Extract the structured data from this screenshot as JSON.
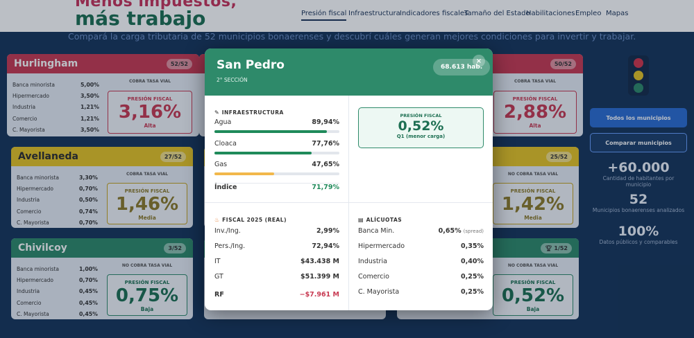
{
  "header": {
    "title_line1": "Menos impuestos,",
    "title_line2": "más trabajo",
    "subtitle": "Compará la carga tributaria de 52 municipios bonaerenses y descubrí cuáles generan mejores condiciones para invertir y trabajar.",
    "nav": [
      "Presión fiscal",
      "Infraestructura",
      "Indicadores fiscales",
      "Tamaño del Estado",
      "Habilitaciones",
      "Empleo",
      "Mapas"
    ],
    "active_nav": "Presión fiscal"
  },
  "row_labels": [
    "Banca minorista",
    "Hipermercado",
    "Industria",
    "Comercio",
    "C. Mayorista"
  ],
  "cards": {
    "hurlingham": {
      "name": "Hurlingham",
      "rank": "52/52",
      "tasa": "COBRA TASA VIAL",
      "rows": [
        "5,00%",
        "3,50%",
        "1,21%",
        "1,21%",
        "3,50%"
      ],
      "ptitle": "PRESIÓN FISCAL",
      "pval": "3,16%",
      "pcat": "Alta"
    },
    "avellaneda": {
      "name": "Avellaneda",
      "rank": "27/52",
      "tasa": "COBRA TASA VIAL",
      "rows": [
        "3,30%",
        "0,70%",
        "0,50%",
        "0,74%",
        "0,70%"
      ],
      "ptitle": "PRESIÓN FISCAL",
      "pval": "1,46%",
      "pcat": "Media"
    },
    "chivilcoy": {
      "name": "Chivilcoy",
      "rank": "3/52",
      "tasa": "NO COBRA TASA VIAL",
      "rows": [
        "1,00%",
        "0,70%",
        "0,45%",
        "0,45%",
        "0,45%"
      ],
      "ptitle": "PRESIÓN FISCAL",
      "pval": "0,75%",
      "pcat": "Baja"
    },
    "right1": {
      "rank": "50/52",
      "tasa": "COBRA TASA VIAL",
      "ptitle": "PRESIÓN FISCAL",
      "pval": "2,88%",
      "pcat": "Alta"
    },
    "right2": {
      "rank": "25/52",
      "tasa": "NO COBRA TASA VIAL",
      "ptitle": "PRESIÓN FISCAL",
      "pval": "1,42%",
      "pcat": "Media"
    },
    "right3": {
      "rank": "1/52",
      "tasa": "NO COBRA TASA VIAL",
      "ptitle": "PRESIÓN FISCAL",
      "pval": "0,52%",
      "pcat": "Baja"
    }
  },
  "sidebar": {
    "btn_all": "Todos los municipios",
    "btn_compare": "Comparar municipios",
    "stats": [
      {
        "num": "+60.000",
        "label": "Cantidad de habitantes por municipio"
      },
      {
        "num": "52",
        "label": "Municipios bonaerenses analizados"
      },
      {
        "num": "100%",
        "label": "Datos públicos y comparables"
      }
    ]
  },
  "modal": {
    "name": "San Pedro",
    "section": "2° SECCIÓN",
    "habitants": "68.613 hab.",
    "close": "×",
    "infra": {
      "title": "INFRAESTRUCTURA",
      "items": [
        {
          "label": "Agua",
          "value": "89,94%",
          "pct": 89.94,
          "color": "#1f8a5a"
        },
        {
          "label": "Cloaca",
          "value": "77,76%",
          "pct": 77.76,
          "color": "#1f8a5a"
        },
        {
          "label": "Gas",
          "value": "47,65%",
          "pct": 47.65,
          "color": "#f2b84b"
        }
      ],
      "index_label": "Índice",
      "index_value": "71,79%"
    },
    "presion": {
      "title": "PRESIÓN FISCAL",
      "value": "0,52%",
      "sub": "Q1 (menor carga)"
    },
    "fiscal": {
      "title": "FISCAL 2025 (REAL)",
      "items": [
        {
          "label": "Inv./Ing.",
          "value": "2,99%"
        },
        {
          "label": "Pers./Ing.",
          "value": "72,94%"
        },
        {
          "label": "IT",
          "value": "$43.438 M"
        },
        {
          "label": "GT",
          "value": "$51.399 M"
        }
      ],
      "rf_label": "RF",
      "rf_value": "−$7.961 M"
    },
    "alicuotas": {
      "title": "ALÍCUOTAS",
      "items": [
        {
          "label": "Banca Min.",
          "value": "0,65%",
          "note": "(spread)"
        },
        {
          "label": "Hipermercado",
          "value": "0,35%"
        },
        {
          "label": "Industria",
          "value": "0,40%"
        },
        {
          "label": "Comercio",
          "value": "0,25%"
        },
        {
          "label": "C. Mayorista",
          "value": "0,25%"
        }
      ]
    }
  },
  "colors": {
    "high": "#c83a52",
    "medium": "#e7c425",
    "low": "#2e8a6a",
    "page_bg": "#17355a"
  }
}
